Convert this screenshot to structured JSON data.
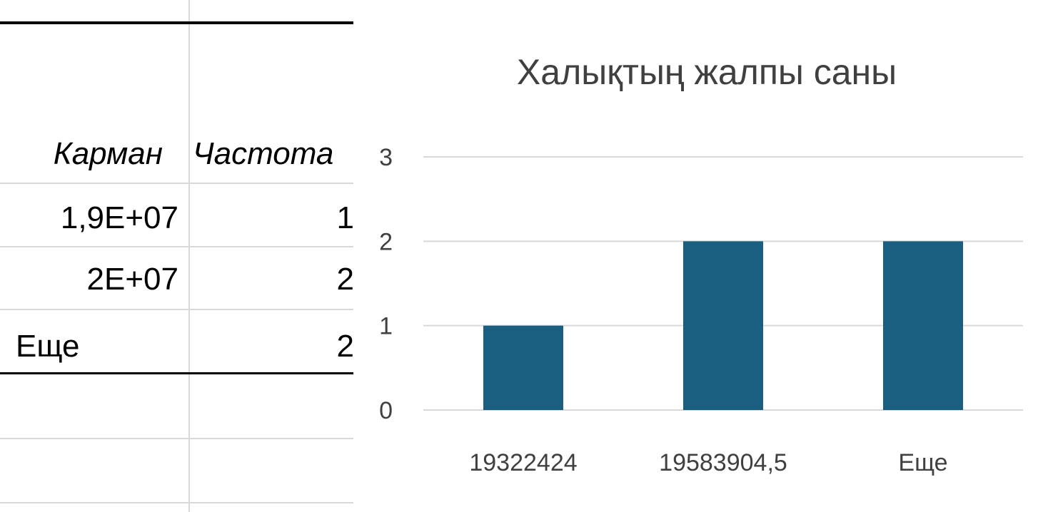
{
  "sheet": {
    "headers": {
      "bin": "Карман",
      "frequency": "Частота"
    },
    "rows": [
      {
        "bin": "1,9E+07",
        "frequency": "1"
      },
      {
        "bin": "2E+07",
        "frequency": "2"
      },
      {
        "bin": "Еще",
        "frequency": "2"
      }
    ]
  },
  "chart_data": {
    "type": "bar",
    "title": "Халықтың жалпы саны",
    "xlabel": "",
    "ylabel": "",
    "categories": [
      "19322424",
      "19583904,5",
      "Еще"
    ],
    "values": [
      1,
      2,
      2
    ],
    "ylim": [
      0,
      3
    ],
    "yticks": [
      "0",
      "1",
      "2",
      "3"
    ],
    "grid": true,
    "bar_color": "#1a5f80",
    "legend": "none"
  }
}
